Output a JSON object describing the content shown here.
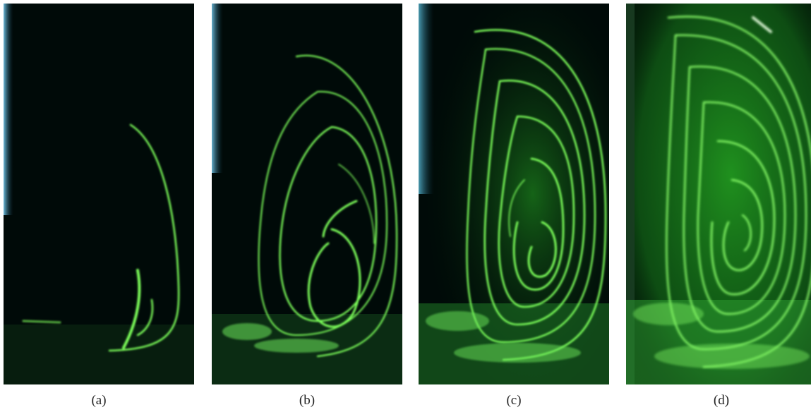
{
  "captions": {
    "a": "(a)",
    "b": "(b)",
    "c": "(c)",
    "d": "(d)"
  },
  "colors": {
    "background": "#000a08",
    "streak": "#7dff5a",
    "glow": "#2fd02a",
    "side_wall": "#3aa8e0"
  }
}
